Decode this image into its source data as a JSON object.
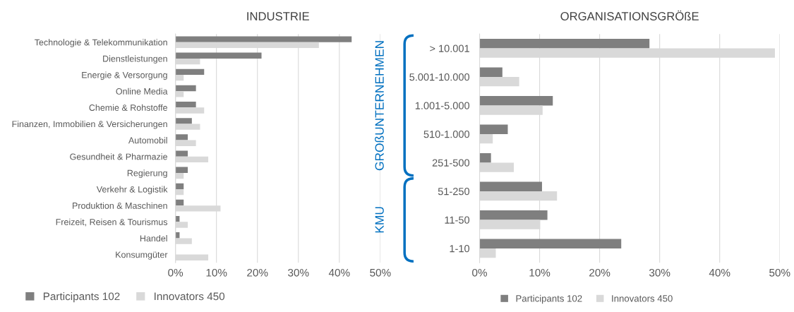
{
  "chart_data": [
    {
      "type": "bar",
      "orientation": "horizontal",
      "title": "INDUSTRIE",
      "categories": [
        "Technologie & Telekommunikation",
        "Dienstleistungen",
        "Energie & Versorgung",
        "Online Media",
        "Chemie & Rohstoffe",
        "Finanzen, Immobilien & Versicherungen",
        "Automobil",
        "Gesundheit & Pharmazie",
        "Regierung",
        "Verkehr & Logistik",
        "Produktion & Maschinen",
        "Freizeit, Reisen & Tourismus",
        "Handel",
        "Konsumgüter"
      ],
      "series": [
        {
          "name": "Participants 102",
          "color": "#7f7f7f",
          "values": [
            43,
            21,
            7,
            5,
            5,
            4,
            3,
            3,
            3,
            2,
            2,
            1,
            1,
            0
          ]
        },
        {
          "name": "Innovators 450",
          "color": "#d9d9d9",
          "values": [
            35,
            6,
            2,
            2,
            7,
            6,
            5,
            8,
            2,
            2,
            11,
            3,
            4,
            8
          ]
        }
      ],
      "xlim": [
        0,
        50
      ],
      "xticks": [
        {
          "value": 0,
          "label": "0%"
        },
        {
          "value": 10,
          "label": "10%"
        },
        {
          "value": 20,
          "label": "20%"
        },
        {
          "value": 30,
          "label": "30%"
        },
        {
          "value": 40,
          "label": "40%"
        },
        {
          "value": 50,
          "label": "50%"
        }
      ],
      "grid": "x",
      "legend": "bottom"
    },
    {
      "type": "bar",
      "orientation": "horizontal",
      "title": "ORGANISATIONSGRÖßE",
      "categories": [
        "> 10.001",
        "5.001-10.000",
        "1.001-5.000",
        "510-1.000",
        "251-500",
        "51-250",
        "11-50",
        "1-10"
      ],
      "series": [
        {
          "name": "Participants 102",
          "color": "#7f7f7f",
          "values": [
            28.3,
            3.8,
            12.2,
            4.7,
            1.9,
            10.4,
            11.3,
            23.6
          ]
        },
        {
          "name": "Innovators 450",
          "color": "#d9d9d9",
          "values": [
            49.2,
            6.6,
            10.5,
            2.2,
            5.7,
            12.9,
            10.1,
            2.7
          ]
        }
      ],
      "xlim": [
        0,
        50
      ],
      "xticks": [
        {
          "value": 0,
          "label": "0%"
        },
        {
          "value": 10,
          "label": "10%"
        },
        {
          "value": 20,
          "label": "20%"
        },
        {
          "value": 30,
          "label": "30%"
        },
        {
          "value": 40,
          "label": "40%"
        },
        {
          "value": 50,
          "label": "50%"
        }
      ],
      "annotations": [
        "GROßUNTERNEHMEN",
        "KMU"
      ],
      "grid": "x",
      "legend": "bottom"
    }
  ]
}
